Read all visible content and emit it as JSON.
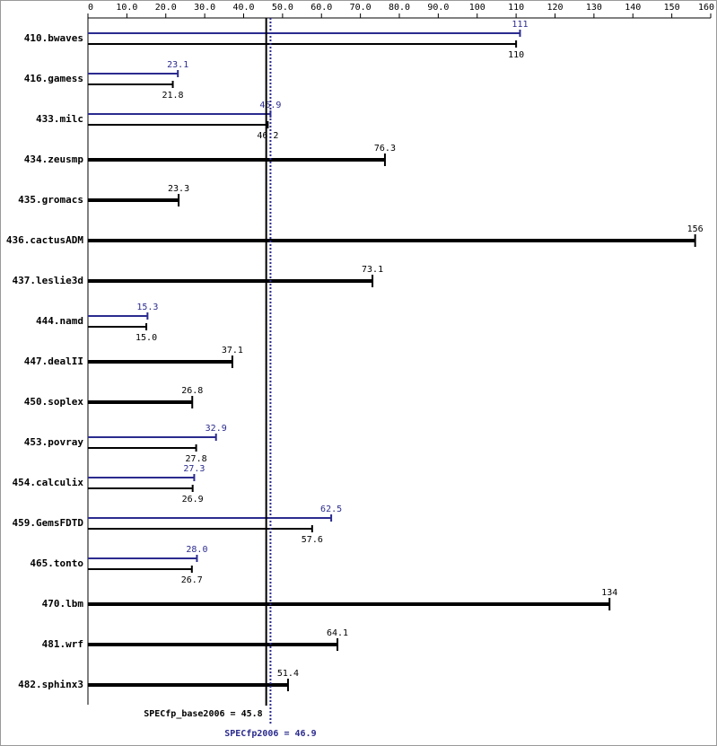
{
  "chart_data": {
    "type": "bar",
    "orientation": "horizontal",
    "categories": [
      "410.bwaves",
      "416.gamess",
      "433.milc",
      "434.zeusmp",
      "435.gromacs",
      "436.cactusADM",
      "437.leslie3d",
      "444.namd",
      "447.dealII",
      "450.soplex",
      "453.povray",
      "454.calculix",
      "459.GemsFDTD",
      "465.tonto",
      "470.lbm",
      "481.wrf",
      "482.sphinx3"
    ],
    "series": [
      {
        "color": "#000000",
        "values": [
          110,
          21.8,
          46.2,
          76.3,
          23.3,
          156,
          73.1,
          15.0,
          37.1,
          26.8,
          27.8,
          26.9,
          57.6,
          26.7,
          134,
          64.1,
          51.4
        ],
        "value_labels": [
          "110",
          "21.8",
          "46.2",
          "76.3",
          "23.3",
          "156",
          "73.1",
          "15.0",
          "37.1",
          "26.8",
          "27.8",
          "26.9",
          "57.6",
          "26.7",
          "134",
          "64.1",
          "51.4"
        ]
      },
      {
        "color": "#2b2b8f",
        "values": [
          111,
          23.1,
          46.9,
          null,
          null,
          null,
          null,
          15.3,
          null,
          null,
          32.9,
          27.3,
          62.5,
          28.0,
          null,
          null,
          null
        ],
        "value_labels": [
          "111",
          "23.1",
          "46.9",
          null,
          null,
          null,
          null,
          "15.3",
          null,
          null,
          "32.9",
          "27.3",
          "62.5",
          "28.0",
          null,
          null,
          null
        ]
      }
    ],
    "xlim": [
      0,
      160
    ],
    "xticks": [
      0,
      {
        "value": 10,
        "label": "10.0"
      },
      {
        "value": 20,
        "label": "20.0"
      },
      {
        "value": 30,
        "label": "30.0"
      },
      {
        "value": 40,
        "label": "40.0"
      },
      {
        "value": 50,
        "label": "50.0"
      },
      {
        "value": 60,
        "label": "60.0"
      },
      {
        "value": 70,
        "label": "70.0"
      },
      {
        "value": 80,
        "label": "80.0"
      },
      {
        "value": 90,
        "label": "90.0"
      },
      100,
      110,
      120,
      130,
      140,
      150,
      160
    ],
    "reference_lines": [
      {
        "value": 45.8,
        "label": "SPECfp_base2006 = 45.8",
        "color": "#000000",
        "style": "solid"
      },
      {
        "value": 46.9,
        "label": "SPECfp2006 = 46.9",
        "color": "#2b2b8f",
        "style": "dotted"
      }
    ]
  }
}
